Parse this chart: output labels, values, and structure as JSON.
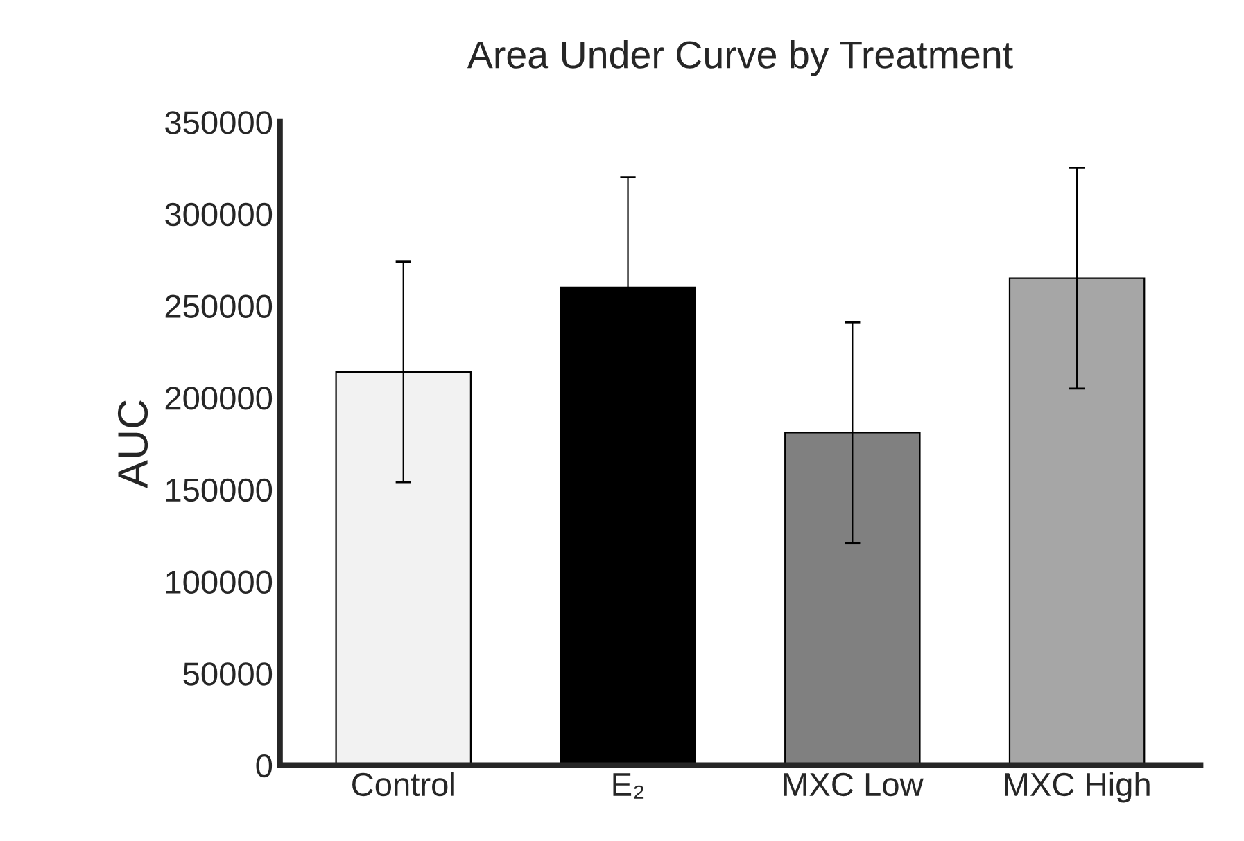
{
  "chart_data": {
    "type": "bar",
    "title": "Area Under Curve by Treatment",
    "ylabel": "AUC",
    "categories": [
      "Control",
      "E₂",
      "MXC Low",
      "MXC High"
    ],
    "values": [
      214000,
      260000,
      181000,
      265000
    ],
    "errors": [
      60000,
      60000,
      60000,
      60000
    ],
    "colors": [
      "#f2f2f2",
      "#000000",
      "#808080",
      "#a6a6a6"
    ],
    "ylim": [
      0,
      350000
    ],
    "yticks": [
      0,
      50000,
      100000,
      150000,
      200000,
      250000,
      300000,
      350000
    ],
    "grid": false,
    "legend": false
  }
}
